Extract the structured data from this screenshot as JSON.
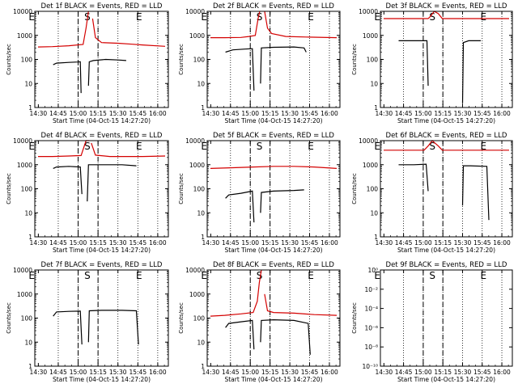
{
  "figure": {
    "xlabel": "Start Time (04-Oct-15 14:27:20)",
    "ylabel": "Counts/sec",
    "x_tick_labels": [
      "14:30",
      "14:45",
      "15:00",
      "15:15",
      "15:30",
      "15:45",
      "16:00"
    ],
    "y_tick_labels": [
      "1",
      "10",
      "100",
      "1000",
      "10000"
    ],
    "y_tick_labels_panel9": [
      "10⁻¹⁰",
      "10⁻⁸",
      "10⁻⁶",
      "10⁻⁴",
      "10⁻²",
      "10⁰"
    ],
    "colors": {
      "events": "#000000",
      "lld": "#d40000",
      "axes": "#000000",
      "background": "#ffffff"
    }
  },
  "chart_data": [
    {
      "type": "line",
      "title": "Det 1f BLACK = Events, RED = LLD",
      "x_range": [
        "14:27:20",
        "16:08"
      ],
      "ylim": [
        1,
        10000
      ],
      "y_scale": "log",
      "markers": [
        {
          "label": "E",
          "x": "14:30"
        },
        {
          "label": "S",
          "x": "15:04"
        },
        {
          "label": "E",
          "x": "15:43"
        }
      ],
      "series": [
        {
          "name": "BLACK = Events",
          "color": "#000000",
          "segments": [
            [
              [
                14.82,
                60
              ],
              [
                14.9,
                70
              ],
              [
                15.2,
                75
              ],
              [
                15.42,
                78
              ],
              [
                15.48,
                80
              ],
              [
                15.5,
                4
              ]
            ],
            [
              [
                15.68,
                8
              ],
              [
                15.7,
                80
              ],
              [
                15.8,
                90
              ],
              [
                16.1,
                100
              ],
              [
                16.4,
                95
              ],
              [
                16.6,
                90
              ]
            ]
          ]
        },
        {
          "name": "RED = LLD",
          "color": "#d40000",
          "segments": [
            [
              [
                14.45,
                330
              ],
              [
                14.8,
                340
              ],
              [
                15.2,
                370
              ],
              [
                15.55,
                420
              ],
              [
                15.62,
                2000
              ],
              [
                15.68,
                20000
              ]
            ],
            [
              [
                15.78,
                5000
              ],
              [
                15.85,
                800
              ],
              [
                16.0,
                500
              ],
              [
                16.4,
                470
              ],
              [
                16.75,
                430
              ],
              [
                17.0,
                400
              ],
              [
                17.55,
                350
              ]
            ]
          ]
        }
      ]
    },
    {
      "type": "line",
      "title": "Det 2f BLACK = Events, RED = LLD",
      "x_range": [
        "14:27:20",
        "16:08"
      ],
      "ylim": [
        1,
        10000
      ],
      "y_scale": "log",
      "markers": [
        {
          "label": "E",
          "x": "14:30"
        },
        {
          "label": "S",
          "x": "15:04"
        },
        {
          "label": "E",
          "x": "15:43"
        }
      ],
      "series": [
        {
          "name": "BLACK = Events",
          "color": "#000000",
          "segments": [
            [
              [
                14.82,
                200
              ],
              [
                15.0,
                250
              ],
              [
                15.3,
                270
              ],
              [
                15.48,
                280
              ],
              [
                15.52,
                5
              ]
            ],
            [
              [
                15.68,
                10
              ],
              [
                15.7,
                300
              ],
              [
                16.0,
                320
              ],
              [
                16.5,
                330
              ],
              [
                16.75,
                300
              ],
              [
                16.8,
                200
              ]
            ]
          ]
        },
        {
          "name": "RED = LLD",
          "color": "#d40000",
          "segments": [
            [
              [
                14.45,
                800
              ],
              [
                14.8,
                800
              ],
              [
                15.2,
                820
              ],
              [
                15.4,
                900
              ],
              [
                15.55,
                1000
              ],
              [
                15.62,
                5000
              ],
              [
                15.66,
                15000
              ]
            ],
            [
              [
                15.78,
                10000
              ],
              [
                15.85,
                2000
              ],
              [
                15.95,
                1200
              ],
              [
                16.3,
                900
              ],
              [
                16.8,
                850
              ],
              [
                17.55,
                800
              ]
            ]
          ]
        }
      ]
    },
    {
      "type": "line",
      "title": "Det 3f BLACK = Events, RED = LLD",
      "x_range": [
        "14:27:20",
        "16:08"
      ],
      "ylim": [
        1,
        10000
      ],
      "y_scale": "log",
      "markers": [
        {
          "label": "E",
          "x": "14:30"
        },
        {
          "label": "S",
          "x": "15:04"
        },
        {
          "label": "E",
          "x": "15:43"
        }
      ],
      "series": [
        {
          "name": "BLACK = Events",
          "color": "#000000",
          "segments": [
            [
              [
                14.82,
                600
              ],
              [
                15.2,
                600
              ],
              [
                15.52,
                600
              ],
              [
                15.55,
                8
              ]
            ],
            [
              [
                16.4,
                1.5
              ],
              [
                16.42,
                500
              ],
              [
                16.55,
                600
              ],
              [
                16.85,
                600
              ]
            ]
          ]
        },
        {
          "name": "RED = LLD",
          "color": "#d40000",
          "segments": [
            [
              [
                14.45,
                5000
              ],
              [
                15.0,
                5000
              ],
              [
                15.55,
                5000
              ],
              [
                15.6,
                6000
              ],
              [
                15.7,
                12000
              ],
              [
                15.8,
                8000
              ],
              [
                15.9,
                5000
              ],
              [
                16.5,
                5000
              ],
              [
                17.55,
                5000
              ]
            ]
          ]
        }
      ]
    },
    {
      "type": "line",
      "title": "Det 4f BLACK = Events, RED = LLD",
      "x_range": [
        "14:27:20",
        "16:08"
      ],
      "ylim": [
        1,
        10000
      ],
      "y_scale": "log",
      "markers": [
        {
          "label": "E",
          "x": "14:30"
        },
        {
          "label": "S",
          "x": "15:04"
        },
        {
          "label": "E",
          "x": "15:43"
        }
      ],
      "series": [
        {
          "name": "BLACK = Events",
          "color": "#000000",
          "segments": [
            [
              [
                14.82,
                700
              ],
              [
                14.9,
                800
              ],
              [
                15.2,
                850
              ],
              [
                15.48,
                800
              ],
              [
                15.52,
                60
              ]
            ],
            [
              [
                15.65,
                30
              ],
              [
                15.68,
                1000
              ],
              [
                16.0,
                1000
              ],
              [
                16.5,
                1000
              ],
              [
                16.85,
                900
              ]
            ]
          ]
        },
        {
          "name": "RED = LLD",
          "color": "#d40000",
          "segments": [
            [
              [
                14.45,
                2200
              ],
              [
                14.8,
                2200
              ],
              [
                15.2,
                2300
              ],
              [
                15.5,
                2400
              ],
              [
                15.62,
                10000
              ],
              [
                15.7,
                15000
              ]
            ],
            [
              [
                15.75,
                8000
              ],
              [
                15.85,
                2500
              ],
              [
                16.2,
                2200
              ],
              [
                17.0,
                2200
              ],
              [
                17.55,
                2300
              ]
            ]
          ]
        }
      ]
    },
    {
      "type": "line",
      "title": "Det 5f BLACK = Events, RED = LLD",
      "x_range": [
        "14:27:20",
        "16:08"
      ],
      "ylim": [
        1,
        10000
      ],
      "y_scale": "log",
      "markers": [
        {
          "label": "E",
          "x": "14:30"
        },
        {
          "label": "S",
          "x": "15:04"
        },
        {
          "label": "E",
          "x": "15:43"
        }
      ],
      "series": [
        {
          "name": "BLACK = Events",
          "color": "#000000",
          "segments": [
            [
              [
                14.82,
                40
              ],
              [
                14.9,
                55
              ],
              [
                15.2,
                65
              ],
              [
                15.48,
                80
              ],
              [
                15.52,
                4
              ]
            ],
            [
              [
                15.68,
                10
              ],
              [
                15.7,
                70
              ],
              [
                16.0,
                80
              ],
              [
                16.5,
                85
              ],
              [
                16.75,
                90
              ]
            ]
          ]
        },
        {
          "name": "RED = LLD",
          "color": "#d40000",
          "segments": [
            [
              [
                14.45,
                700
              ],
              [
                15.0,
                750
              ],
              [
                15.5,
                800
              ],
              [
                16.0,
                850
              ],
              [
                16.5,
                850
              ],
              [
                17.0,
                800
              ],
              [
                17.55,
                700
              ]
            ]
          ]
        }
      ]
    },
    {
      "type": "line",
      "title": "Det 6f BLACK = Events, RED = LLD",
      "x_range": [
        "14:27:20",
        "16:08"
      ],
      "ylim": [
        1,
        10000
      ],
      "y_scale": "log",
      "markers": [
        {
          "label": "E",
          "x": "14:30"
        },
        {
          "label": "S",
          "x": "15:04"
        },
        {
          "label": "E",
          "x": "15:43"
        }
      ],
      "series": [
        {
          "name": "BLACK = Events",
          "color": "#000000",
          "segments": [
            [
              [
                14.82,
                1000
              ],
              [
                15.2,
                1000
              ],
              [
                15.5,
                1050
              ],
              [
                15.55,
                80
              ]
            ],
            [
              [
                16.4,
                20
              ],
              [
                16.42,
                900
              ],
              [
                16.6,
                900
              ],
              [
                17.0,
                850
              ],
              [
                17.05,
                5
              ]
            ]
          ]
        },
        {
          "name": "RED = LLD",
          "color": "#d40000",
          "segments": [
            [
              [
                14.45,
                4000
              ],
              [
                15.0,
                4000
              ],
              [
                15.45,
                4000
              ],
              [
                15.55,
                6000
              ],
              [
                15.65,
                10000
              ],
              [
                15.8,
                6000
              ],
              [
                15.9,
                4000
              ],
              [
                16.5,
                4000
              ],
              [
                17.55,
                4000
              ]
            ]
          ]
        }
      ]
    },
    {
      "type": "line",
      "title": "Det 7f BLACK = Events, RED = LLD",
      "x_range": [
        "14:27:20",
        "16:08"
      ],
      "ylim": [
        1,
        10000
      ],
      "y_scale": "log",
      "markers": [
        {
          "label": "E",
          "x": "14:30"
        },
        {
          "label": "S",
          "x": "15:04"
        },
        {
          "label": "E",
          "x": "15:43"
        }
      ],
      "series": [
        {
          "name": "BLACK = Events",
          "color": "#000000",
          "segments": [
            [
              [
                14.82,
                120
              ],
              [
                14.9,
                180
              ],
              [
                15.2,
                190
              ],
              [
                15.48,
                195
              ],
              [
                15.52,
                8
              ]
            ],
            [
              [
                15.68,
                10
              ],
              [
                15.7,
                200
              ],
              [
                16.0,
                210
              ],
              [
                16.5,
                210
              ],
              [
                16.85,
                200
              ],
              [
                16.9,
                8
              ]
            ]
          ]
        }
      ]
    },
    {
      "type": "line",
      "title": "Det 8f BLACK = Events, RED = LLD",
      "x_range": [
        "14:27:20",
        "16:08"
      ],
      "ylim": [
        1,
        10000
      ],
      "y_scale": "log",
      "markers": [
        {
          "label": "E",
          "x": "14:30"
        },
        {
          "label": "S",
          "x": "15:04"
        },
        {
          "label": "E",
          "x": "15:43"
        }
      ],
      "series": [
        {
          "name": "BLACK = Events",
          "color": "#000000",
          "segments": [
            [
              [
                14.82,
                40
              ],
              [
                14.9,
                60
              ],
              [
                15.2,
                70
              ],
              [
                15.48,
                80
              ],
              [
                15.52,
                5
              ]
            ],
            [
              [
                15.68,
                10
              ],
              [
                15.7,
                80
              ],
              [
                16.0,
                85
              ],
              [
                16.5,
                80
              ],
              [
                16.85,
                60
              ],
              [
                16.9,
                3
              ]
            ]
          ]
        },
        {
          "name": "RED = LLD",
          "color": "#d40000",
          "segments": [
            [
              [
                14.45,
                120
              ],
              [
                14.8,
                130
              ],
              [
                15.2,
                150
              ],
              [
                15.5,
                170
              ],
              [
                15.6,
                500
              ],
              [
                15.65,
                3000
              ],
              [
                15.7,
                10000
              ]
            ],
            [
              [
                15.78,
                1000
              ],
              [
                15.85,
                200
              ],
              [
                16.0,
                170
              ],
              [
                16.5,
                160
              ],
              [
                17.0,
                140
              ],
              [
                17.55,
                130
              ]
            ]
          ]
        }
      ]
    },
    {
      "type": "line",
      "title": "Det 9f BLACK = Events, RED = LLD",
      "x_range": [
        "14:27:20",
        "16:08"
      ],
      "ylim": [
        1e-10,
        1
      ],
      "y_scale": "log",
      "markers": [
        {
          "label": "E",
          "x": "14:30"
        },
        {
          "label": "S",
          "x": "15:04"
        },
        {
          "label": "E",
          "x": "15:43"
        }
      ],
      "series": []
    }
  ]
}
